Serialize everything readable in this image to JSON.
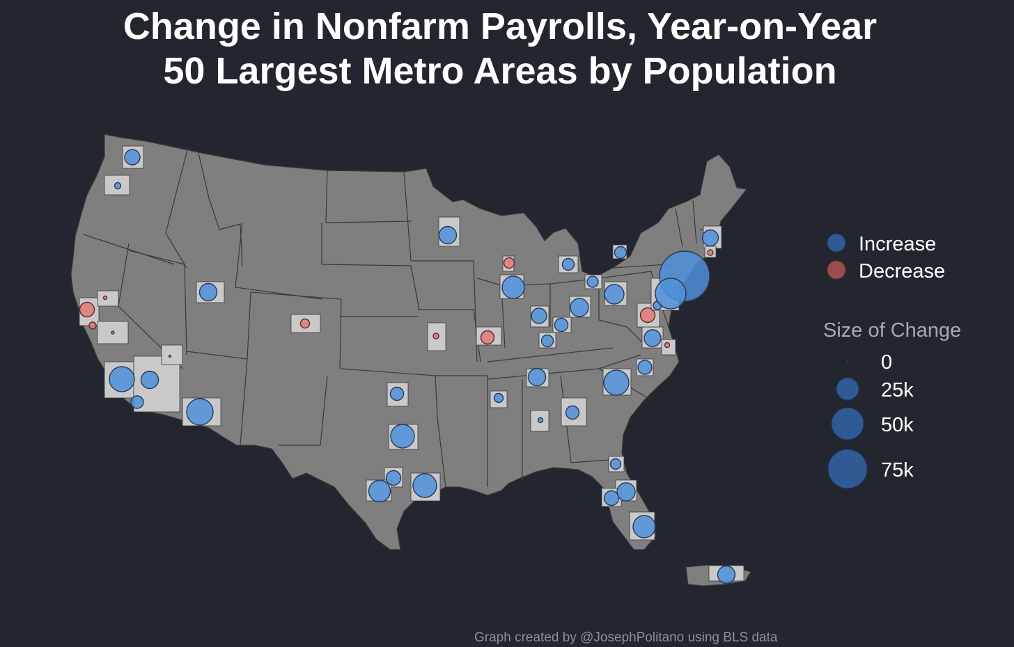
{
  "title": {
    "line1": "Change in Nonfarm Payrolls, Year-on-Year",
    "line2": "50 Largest Metro Areas by Population"
  },
  "colors": {
    "background": "#23262f",
    "land": "#7f7f7f",
    "state_border": "#3a3a3a",
    "metro_area": "#c9c9c9",
    "increase": "#4f8fd9",
    "decrease": "#e07a78",
    "legend_increase": "#2f5a93",
    "legend_decrease": "#9b4d4b"
  },
  "legend": {
    "categories": [
      {
        "label": "Increase",
        "color": "#2f5a93"
      },
      {
        "label": "Decrease",
        "color": "#9b4d4b"
      }
    ],
    "size_title": "Size of Change",
    "sizes": [
      {
        "label": "0",
        "value": 0
      },
      {
        "label": "25k",
        "value": 25000
      },
      {
        "label": "50k",
        "value": 50000
      },
      {
        "label": "75k",
        "value": 75000
      }
    ]
  },
  "credit": "Graph created by @JosephPolitano using BLS data"
}
